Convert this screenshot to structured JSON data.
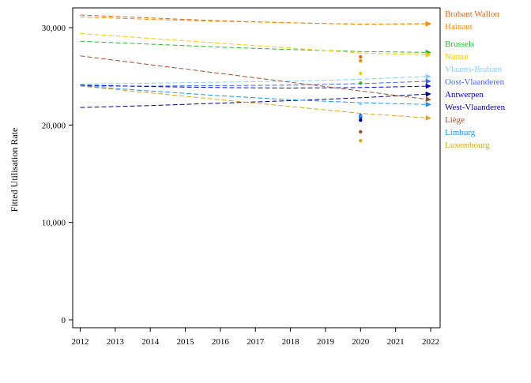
{
  "chart_data": {
    "type": "line",
    "ylabel": "Fitted Utilisation Rate",
    "xlabel": "",
    "xlim": [
      2012,
      2022
    ],
    "ylim": [
      0,
      32000
    ],
    "x_ticks": [
      "2012",
      "2013",
      "2014",
      "2015",
      "2016",
      "2017",
      "2018",
      "2019",
      "2020",
      "2021",
      "2022"
    ],
    "y_ticks": [
      {
        "value": 0,
        "label": "0"
      },
      {
        "value": 10000,
        "label": "10,000"
      },
      {
        "value": 20000,
        "label": "20,000"
      },
      {
        "value": 30000,
        "label": "30,000"
      }
    ],
    "line_style": "dashed",
    "end_markers": "arrow",
    "legend_placement": "right (labels at line ends)",
    "grid": false,
    "series": [
      {
        "name": "Brabant Wallon",
        "color": "#d2691e",
        "x": [
          2012,
          2014,
          2016,
          2018,
          2020,
          2022
        ],
        "y": [
          31300,
          31000,
          30700,
          30500,
          30350,
          30400
        ],
        "point_2020": 27000
      },
      {
        "name": "Hainaut",
        "color": "#ff8c00",
        "x": [
          2012,
          2014,
          2016,
          2018,
          2020,
          2022
        ],
        "y": [
          31100,
          30850,
          30650,
          30500,
          30350,
          30400
        ],
        "point_2020": 26600
      },
      {
        "name": "Brussels",
        "color": "#32b432",
        "x": [
          2012,
          2014,
          2016,
          2018,
          2020,
          2022
        ],
        "y": [
          28600,
          28300,
          28000,
          27750,
          27550,
          27450
        ],
        "point_2020": 24300
      },
      {
        "name": "Namur",
        "color": "#ffc800",
        "x": [
          2012,
          2014,
          2016,
          2018,
          2020,
          2022
        ],
        "y": [
          29400,
          28900,
          28400,
          27900,
          27400,
          27200
        ],
        "point_2020": 25300
      },
      {
        "name": "Vlaams-Brabant",
        "color": "#87cefa",
        "x": [
          2012,
          2014,
          2016,
          2018,
          2020,
          2022
        ],
        "y": [
          24200,
          24300,
          24400,
          24500,
          24700,
          25000
        ],
        "point_2020": 22200
      },
      {
        "name": "Oost-Vlaanderen",
        "color": "#4169e1",
        "x": [
          2012,
          2014,
          2016,
          2018,
          2020,
          2022
        ],
        "y": [
          24000,
          24000,
          24050,
          24100,
          24250,
          24500
        ],
        "point_2020": 21000
      },
      {
        "name": "Antwerpen",
        "color": "#0000cd",
        "x": [
          2012,
          2014,
          2016,
          2018,
          2020,
          2022
        ],
        "y": [
          24100,
          23950,
          23850,
          23800,
          23850,
          24000
        ],
        "point_2020": 20800
      },
      {
        "name": "West-Vlaanderen",
        "color": "#00008b",
        "x": [
          2012,
          2014,
          2016,
          2018,
          2020,
          2022
        ],
        "y": [
          21800,
          22000,
          22250,
          22500,
          22800,
          23200
        ],
        "point_2020": 20500
      },
      {
        "name": "Liège",
        "color": "#a0522d",
        "x": [
          2012,
          2014,
          2016,
          2018,
          2020,
          2022
        ],
        "y": [
          27100,
          26200,
          25300,
          24400,
          23500,
          22600
        ],
        "point_2020": 19300
      },
      {
        "name": "Limburg",
        "color": "#1e90ff",
        "x": [
          2012,
          2014,
          2016,
          2018,
          2020,
          2022
        ],
        "y": [
          24000,
          23500,
          23000,
          22600,
          22300,
          22100
        ],
        "point_2020": 20900
      },
      {
        "name": "Luxembourg",
        "color": "#daa520",
        "x": [
          2012,
          2014,
          2016,
          2018,
          2020,
          2022
        ],
        "y": [
          24000,
          23300,
          22600,
          21900,
          21200,
          20700
        ],
        "point_2020": 18400
      }
    ]
  }
}
